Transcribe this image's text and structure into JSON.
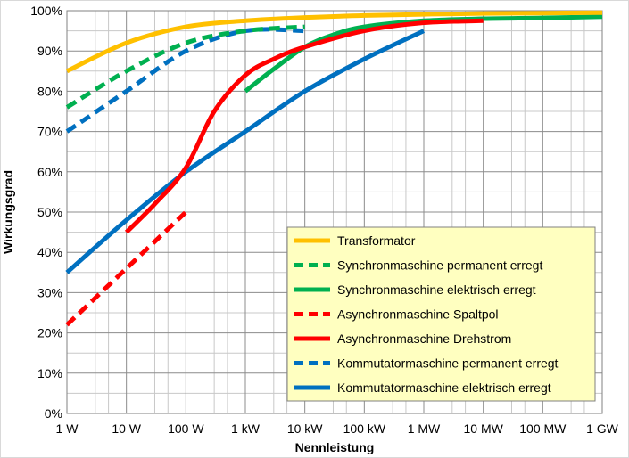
{
  "chart_data": {
    "type": "line",
    "title": "",
    "xlabel": "Nennleistung",
    "ylabel": "Wirkungsgrad",
    "x_scale": "log10",
    "xlim": [
      1,
      1000000000
    ],
    "ylim": [
      0,
      100
    ],
    "grid": "on (major decades plus minor log lines)",
    "legend_position": "bottom-right",
    "x_ticks": [
      {
        "value": 1,
        "label": "1 W"
      },
      {
        "value": 10,
        "label": "10 W"
      },
      {
        "value": 100,
        "label": "100 W"
      },
      {
        "value": 1000,
        "label": "1 kW"
      },
      {
        "value": 10000,
        "label": "10 kW"
      },
      {
        "value": 100000,
        "label": "100 kW"
      },
      {
        "value": 1000000,
        "label": "1 MW"
      },
      {
        "value": 10000000,
        "label": "10 MW"
      },
      {
        "value": 100000000,
        "label": "100 MW"
      },
      {
        "value": 1000000000,
        "label": "1 GW"
      }
    ],
    "y_ticks": [
      {
        "value": 0,
        "label": "0%"
      },
      {
        "value": 10,
        "label": "10%"
      },
      {
        "value": 20,
        "label": "20%"
      },
      {
        "value": 30,
        "label": "30%"
      },
      {
        "value": 40,
        "label": "40%"
      },
      {
        "value": 50,
        "label": "50%"
      },
      {
        "value": 60,
        "label": "60%"
      },
      {
        "value": 70,
        "label": "70%"
      },
      {
        "value": 80,
        "label": "80%"
      },
      {
        "value": 90,
        "label": "90%"
      },
      {
        "value": 100,
        "label": "100%"
      }
    ],
    "series": [
      {
        "name": "Transformator",
        "color": "#ffc000",
        "dash": "solid",
        "x": [
          1,
          10,
          100,
          1000,
          10000,
          100000,
          1000000,
          10000000,
          100000000,
          1000000000
        ],
        "y": [
          85,
          92,
          96,
          97.5,
          98.3,
          98.8,
          99.1,
          99.3,
          99.4,
          99.5
        ]
      },
      {
        "name": "Synchronmaschine permanent erregt",
        "color": "#00b050",
        "dash": "dashed",
        "x": [
          1,
          10,
          100,
          1000,
          10000
        ],
        "y": [
          76,
          85,
          92,
          95,
          96
        ]
      },
      {
        "name": "Synchronmaschine elektrisch erregt",
        "color": "#00b050",
        "dash": "solid",
        "x": [
          1000,
          3000,
          10000,
          30000,
          100000,
          1000000,
          10000000,
          100000000,
          1000000000
        ],
        "y": [
          80,
          85.5,
          91,
          94,
          96,
          97.5,
          98,
          98.2,
          98.5
        ]
      },
      {
        "name": "Asynchronmaschine Spaltpol",
        "color": "#ff0000",
        "dash": "dashed",
        "x": [
          1,
          10,
          100
        ],
        "y": [
          22,
          36,
          50
        ]
      },
      {
        "name": "Asynchronmaschine Drehstrom",
        "color": "#ff0000",
        "dash": "solid",
        "x": [
          10,
          30,
          100,
          300,
          1000,
          3000,
          10000,
          100000,
          1000000,
          10000000
        ],
        "y": [
          45,
          52,
          61,
          75,
          84,
          88,
          91,
          95,
          97,
          97.5
        ]
      },
      {
        "name": "Kommutatormaschine permanent erregt",
        "color": "#0070c0",
        "dash": "dashed",
        "x": [
          1,
          10,
          100,
          1000,
          10000
        ],
        "y": [
          70,
          80,
          90,
          95,
          95
        ]
      },
      {
        "name": "Kommutatormaschine elektrisch erregt",
        "color": "#0070c0",
        "dash": "solid",
        "x": [
          1,
          10,
          100,
          1000,
          10000,
          100000,
          1000000
        ],
        "y": [
          35,
          48,
          60,
          70,
          80,
          88,
          95
        ]
      }
    ]
  }
}
